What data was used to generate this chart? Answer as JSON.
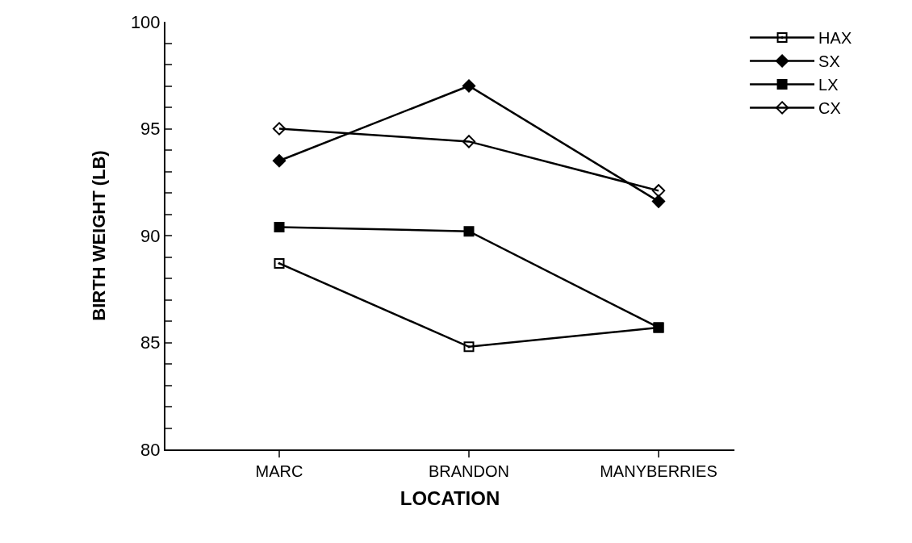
{
  "chart_data": {
    "type": "line",
    "xlabel": "LOCATION",
    "ylabel": "BIRTH WEIGHT (LB)",
    "categories": [
      "MARC",
      "BRANDON",
      "MANYBERRIES"
    ],
    "series": [
      {
        "name": "HAX",
        "color": "#000000",
        "marker": "square-open-dot",
        "values": [
          88.7,
          84.8,
          85.7
        ]
      },
      {
        "name": "SX",
        "color": "#000000",
        "marker": "diamond",
        "values": [
          93.5,
          97.0,
          91.6
        ]
      },
      {
        "name": "LX",
        "color": "#000000",
        "marker": "square-dot",
        "values": [
          90.4,
          90.2,
          85.7
        ]
      },
      {
        "name": "CX",
        "color": "#000000",
        "marker": "diamond-open",
        "values": [
          95.0,
          94.4,
          92.1
        ]
      }
    ],
    "ylim": [
      80,
      100
    ],
    "yticks": [
      80,
      {
        "value": 81,
        "label": null
      },
      {
        "value": 82,
        "label": null
      },
      {
        "value": 83,
        "label": null
      },
      {
        "value": 84,
        "label": null
      },
      85,
      {
        "value": 86,
        "label": null
      },
      {
        "value": 87,
        "label": null
      },
      {
        "value": 88,
        "label": null
      },
      {
        "value": 89,
        "label": null
      },
      90,
      {
        "value": 91,
        "label": null
      },
      {
        "value": 92,
        "label": null
      },
      {
        "value": 93,
        "label": null
      },
      {
        "value": 94,
        "label": null
      },
      95,
      {
        "value": 96,
        "label": null
      },
      {
        "value": 97,
        "label": null
      },
      {
        "value": 98,
        "label": null
      },
      {
        "value": 99,
        "label": null
      },
      100
    ],
    "legend": "top right",
    "line_style": "solid"
  }
}
